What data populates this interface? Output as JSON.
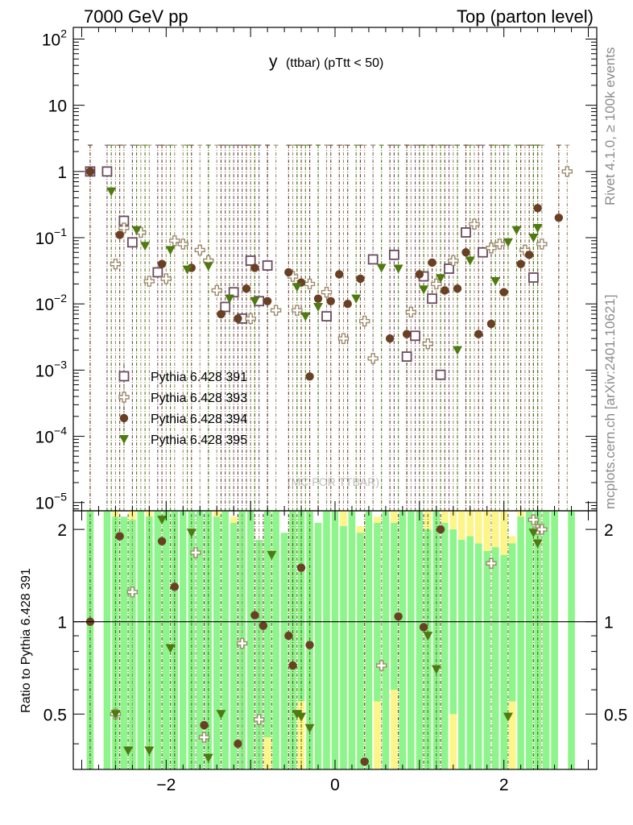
{
  "header": {
    "left": "7000 GeV pp",
    "right": "Top (parton level)"
  },
  "side_labels": {
    "rivet": "Rivet 4.1.0, ≥ 100k events",
    "mcplots": "mcplots.cern.ch [arXiv:2401.10621]"
  },
  "watermark": "(MC FOR TTBAR)",
  "colors": {
    "s391": "#6b4a5e",
    "s393": "#9c8a6c",
    "s394": "#6a4024",
    "s395": "#4f7a10",
    "band_green": "#8cf58c",
    "band_yellow": "#fdf586"
  },
  "chart_data": [
    {
      "type": "scatter",
      "title": "y",
      "subtitle": "(ttbar)  (pTtt < 50)",
      "xlabel": "",
      "ylabel": "",
      "yscale": "log",
      "xlim": [
        -3.1,
        3.1
      ],
      "ylim": [
        7.5e-06,
        150
      ],
      "y_tick_labels": [
        {
          "base": "10",
          "exp": "2"
        },
        {
          "base": "10",
          "exp": ""
        },
        {
          "base": "1",
          "exp": ""
        },
        {
          "base": "10",
          "exp": "−1"
        },
        {
          "base": "10",
          "exp": "−2"
        },
        {
          "base": "10",
          "exp": "−3"
        },
        {
          "base": "10",
          "exp": "−4"
        },
        {
          "base": "10",
          "exp": "−5"
        }
      ],
      "legend": [
        "Pythia 6.428 391",
        "Pythia 6.428 393",
        "Pythia 6.428 394",
        "Pythia 6.428 395"
      ],
      "series": [
        {
          "name": "Pythia 6.428 391",
          "marker": "open-square",
          "x": [
            -2.9,
            -2.7,
            -2.5,
            -2.4,
            -2.1,
            -1.3,
            -1.2,
            -1.1,
            -1.0,
            -0.9,
            -0.8,
            -0.1,
            0.45,
            0.7,
            0.85,
            0.95,
            1.05,
            1.15,
            1.25,
            1.35,
            1.55,
            1.75,
            2.35
          ],
          "y": [
            1.0,
            1.0,
            0.18,
            0.085,
            0.03,
            0.009,
            0.015,
            0.006,
            0.045,
            0.011,
            0.038,
            0.0065,
            0.047,
            0.055,
            0.0016,
            0.0033,
            0.026,
            0.012,
            0.00085,
            0.034,
            0.12,
            0.06,
            0.025
          ]
        },
        {
          "name": "Pythia 6.428 393",
          "marker": "open-cross",
          "x": [
            -2.6,
            -2.5,
            -2.3,
            -2.2,
            -2.0,
            -1.9,
            -1.8,
            -1.6,
            -1.5,
            -1.4,
            -1.0,
            -0.7,
            -0.5,
            -0.45,
            -0.3,
            -0.1,
            0.1,
            0.35,
            0.45,
            0.9,
            1.1,
            1.2,
            1.4,
            1.65,
            1.85,
            1.95,
            2.25,
            2.45,
            2.75
          ],
          "y": [
            0.04,
            0.14,
            0.12,
            0.022,
            0.024,
            0.09,
            0.08,
            0.065,
            0.045,
            0.016,
            0.006,
            0.008,
            0.026,
            0.008,
            0.02,
            0.015,
            0.003,
            0.0055,
            0.0015,
            0.0075,
            0.0025,
            0.02,
            0.045,
            0.16,
            0.07,
            0.08,
            0.065,
            0.08,
            1.0
          ]
        },
        {
          "name": "Pythia 6.428 394",
          "marker": "filled-circle",
          "x": [
            -2.9,
            -2.55,
            -2.05,
            -1.7,
            -1.35,
            -1.15,
            -1.05,
            -0.95,
            -0.8,
            -0.55,
            -0.4,
            -0.3,
            -0.2,
            -0.05,
            0.05,
            0.15,
            0.3,
            0.65,
            0.85,
            1.0,
            1.15,
            1.3,
            1.45,
            1.55,
            1.7,
            1.85,
            2.0,
            2.2,
            2.3,
            2.4,
            2.65
          ],
          "y": [
            1.0,
            0.11,
            0.04,
            0.035,
            0.007,
            0.006,
            0.017,
            0.035,
            0.011,
            0.03,
            0.021,
            0.0008,
            0.012,
            0.011,
            0.028,
            0.01,
            0.024,
            0.003,
            0.0035,
            0.028,
            0.042,
            0.016,
            0.017,
            0.06,
            0.0035,
            0.005,
            0.015,
            0.04,
            0.055,
            0.28,
            0.2
          ]
        },
        {
          "name": "Pythia 6.428 395",
          "marker": "filled-triangle-down",
          "x": [
            -2.65,
            -2.35,
            -2.25,
            -1.95,
            -1.75,
            -1.5,
            -1.25,
            -0.95,
            -0.45,
            -0.35,
            -0.2,
            0.25,
            0.55,
            0.75,
            1.05,
            1.25,
            1.45,
            1.6,
            1.9,
            2.05,
            2.15,
            2.35,
            2.4
          ],
          "y": [
            0.5,
            0.13,
            0.075,
            0.065,
            0.033,
            0.037,
            0.012,
            0.011,
            0.018,
            0.0065,
            0.009,
            0.012,
            0.035,
            0.034,
            0.0165,
            0.0245,
            0.002,
            0.045,
            0.022,
            0.085,
            0.13,
            0.1,
            0.14
          ]
        }
      ]
    },
    {
      "type": "scatter",
      "title": "",
      "xlabel": "",
      "ylabel": "Ratio to Pythia 6.428 391",
      "xlim": [
        -3.1,
        3.1
      ],
      "ylim": [
        0.33,
        2.3
      ],
      "x_tick_labels": [
        "−2",
        "0",
        "2"
      ],
      "y_tick_labels": [
        "2",
        "1",
        "0.5"
      ],
      "reference_line": 1,
      "band_edges": [
        -2.95,
        -2.85,
        -2.75,
        -2.65,
        -2.55,
        -2.45,
        -2.35,
        -2.25,
        -2.15,
        -2.05,
        -1.95,
        -1.85,
        -1.75,
        -1.65,
        -1.55,
        -1.45,
        -1.35,
        -1.25,
        -1.15,
        -1.05,
        -0.95,
        -0.85,
        -0.75,
        -0.65,
        -0.55,
        -0.45,
        -0.35,
        -0.25,
        -0.15,
        -0.05,
        0.05,
        0.15,
        0.25,
        0.35,
        0.45,
        0.55,
        0.65,
        0.75,
        0.85,
        0.95,
        1.05,
        1.15,
        1.25,
        1.35,
        1.45,
        1.55,
        1.65,
        1.75,
        1.85,
        1.95,
        2.05,
        2.15,
        2.25,
        2.35,
        2.45,
        2.55,
        2.65,
        2.75,
        2.85
      ],
      "band_yellow_hi": [
        2.3,
        0,
        2.3,
        2.3,
        2.2,
        2.3,
        2.3,
        2.3,
        2.3,
        2.3,
        2.3,
        2.3,
        2.3,
        2.3,
        2.3,
        2.3,
        2.3,
        2.2,
        2.3,
        2.3,
        1.85,
        2.3,
        2.3,
        1.95,
        2.3,
        2.3,
        2.3,
        2.1,
        2.3,
        2.3,
        2.3,
        2.3,
        2.05,
        2.3,
        2.2,
        2.3,
        2.3,
        2.3,
        2.3,
        2.3,
        2.3,
        2.3,
        2.3,
        2.3,
        2.3,
        2.3,
        2.3,
        2.3,
        2.3,
        2.3,
        1.9,
        2.3,
        2.3,
        2.3,
        2.3,
        2.3,
        0,
        2.3
      ],
      "band_green_hi": [
        2.3,
        0,
        2.3,
        2.2,
        2.2,
        2.15,
        2.3,
        2.2,
        2.3,
        2.3,
        2.3,
        2.3,
        2.3,
        2.3,
        2.3,
        2.2,
        2.3,
        2.1,
        2.3,
        2.3,
        1.85,
        2.3,
        2.3,
        1.95,
        2.3,
        2.3,
        2.3,
        2.1,
        2.3,
        2.3,
        2.05,
        2.3,
        1.95,
        2.3,
        2.1,
        2.3,
        2.1,
        2.3,
        2.3,
        2.3,
        2.0,
        2.3,
        2.1,
        2.0,
        1.85,
        1.9,
        1.8,
        1.7,
        1.75,
        1.65,
        1.8,
        2.2,
        2.3,
        2.3,
        2.3,
        2.3,
        0,
        2.3
      ],
      "band_yellow_lo": [
        0.33,
        0,
        0.33,
        0.33,
        0.33,
        0.33,
        0.33,
        0.33,
        0.33,
        0.33,
        0.33,
        0.33,
        0.33,
        0.33,
        0.33,
        0.33,
        0.33,
        0.33,
        0.33,
        0.33,
        0.33,
        0.33,
        0.33,
        0.33,
        0.33,
        0.33,
        0.33,
        0.33,
        0.33,
        0.33,
        0.33,
        0.33,
        0.33,
        0.33,
        0.33,
        0.33,
        0.33,
        0.33,
        0.33,
        0.33,
        0.33,
        0.33,
        0.33,
        0.33,
        0.33,
        0.33,
        0.33,
        0.33,
        0.33,
        0.33,
        0.33,
        0.33,
        0.33,
        0.33,
        0.33,
        0.33,
        0,
        0.33
      ],
      "band_green_lo": [
        0.33,
        0,
        0.33,
        0.33,
        0.33,
        0.33,
        0.33,
        0.33,
        0.33,
        0.33,
        0.33,
        0.33,
        0.33,
        0.33,
        0.33,
        0.33,
        0.33,
        0.33,
        0.33,
        0.33,
        0.33,
        0.42,
        0.33,
        0.33,
        0.33,
        0.55,
        0.33,
        0.33,
        0.33,
        0.33,
        0.33,
        0.33,
        0.33,
        0.33,
        0.55,
        0.33,
        0.6,
        0.33,
        0.33,
        0.33,
        0.33,
        0.33,
        0.33,
        0.5,
        0.33,
        0.33,
        0.33,
        0.33,
        0.33,
        0.33,
        0.55,
        0.33,
        0.33,
        0.33,
        0.33,
        0.33,
        0,
        0.33
      ],
      "series": [
        {
          "name": "Pythia 6.428 393",
          "marker": "open-cross",
          "x": [
            -2.6,
            -2.4,
            -1.65,
            -1.55,
            -1.1,
            -0.9,
            0.55,
            1.85,
            2.35,
            2.4,
            2.45
          ],
          "y": [
            0.5,
            1.25,
            1.68,
            0.42,
            0.85,
            0.48,
            0.72,
            1.55,
            2.15,
            2.0,
            2.0
          ]
        },
        {
          "name": "Pythia 6.428 394",
          "marker": "filled-circle",
          "x": [
            -2.9,
            -2.55,
            -2.05,
            -1.9,
            -1.55,
            -1.15,
            -0.95,
            -0.85,
            -0.55,
            -0.5,
            -0.4,
            -0.3,
            0.35,
            0.75,
            1.05,
            1.25
          ],
          "y": [
            1.0,
            1.9,
            1.83,
            1.3,
            0.46,
            0.4,
            1.05,
            0.97,
            0.9,
            0.72,
            1.5,
            0.84,
            0.35,
            1.04,
            0.96,
            2.0
          ]
        },
        {
          "name": "Pythia 6.428 395",
          "marker": "filled-triangle-down",
          "x": [
            -2.6,
            -2.45,
            -2.2,
            -2.05,
            -1.95,
            -1.7,
            -1.5,
            -1.35,
            -0.75,
            -0.45,
            -0.4,
            -0.3,
            1.1,
            1.2,
            2.05,
            2.35,
            2.4
          ],
          "y": [
            0.5,
            0.38,
            0.38,
            2.15,
            0.82,
            1.95,
            0.36,
            0.5,
            1.65,
            0.5,
            0.49,
            0.45,
            0.9,
            0.7,
            0.49,
            1.95,
            1.8
          ]
        }
      ]
    }
  ]
}
